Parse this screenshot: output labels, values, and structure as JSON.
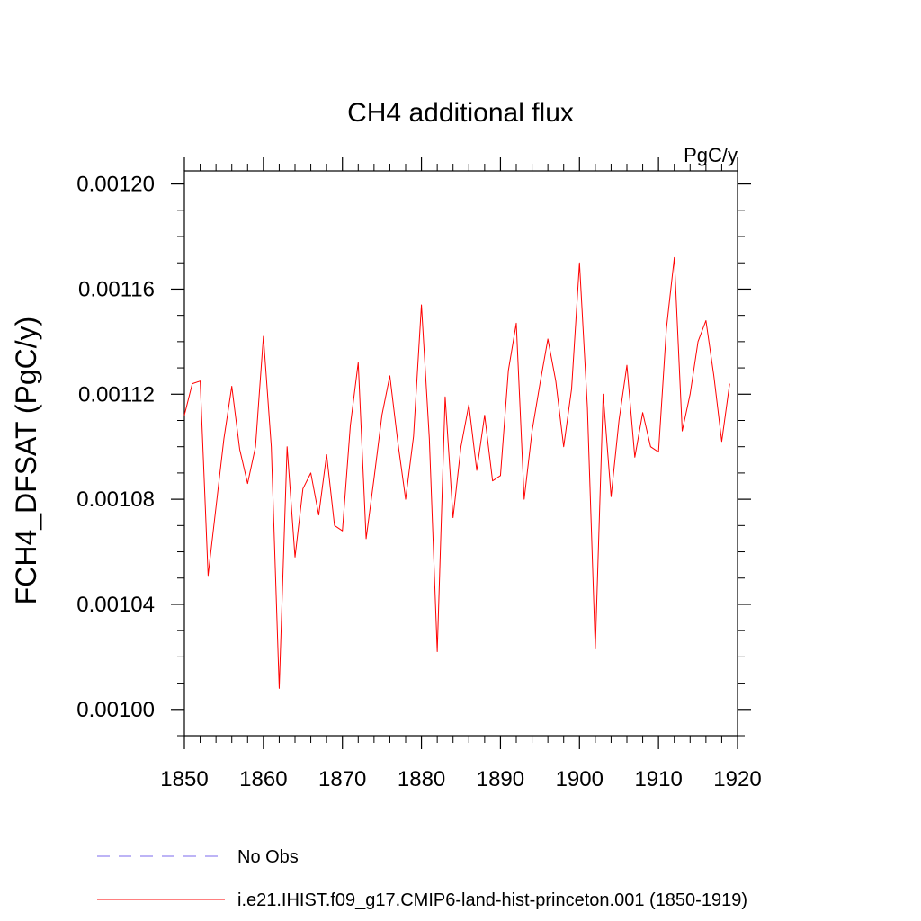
{
  "chart_data": {
    "type": "line",
    "title": "CH4 additional flux",
    "units": "PgC/y",
    "xlabel": "",
    "ylabel": "FCH4_DFSAT  (PgC/y)",
    "xlim": [
      1850,
      1920
    ],
    "ylim": [
      0.00099,
      0.001205
    ],
    "x_ticks": [
      1850,
      1860,
      1870,
      1880,
      1890,
      1900,
      1910,
      1920
    ],
    "x_tick_labels": [
      "1850",
      "1860",
      "1870",
      "1880",
      "1890",
      "1900",
      "1910",
      "1920"
    ],
    "y_ticks": [
      0.001,
      0.00104,
      0.00108,
      0.00112,
      0.00116,
      0.0012
    ],
    "y_tick_labels": [
      "0.00100",
      "0.00104",
      "0.00108",
      "0.00112",
      "0.00116",
      "0.00120"
    ],
    "grid": false,
    "legend_position": "bottom",
    "series": [
      {
        "name": "i.e21.IHIST.f09_g17.CMIP6-land-hist-princeton.001 (1850-1919)",
        "color": "#ff0000",
        "style": "solid",
        "x": [
          1850,
          1851,
          1852,
          1853,
          1854,
          1855,
          1856,
          1857,
          1858,
          1859,
          1860,
          1861,
          1862,
          1863,
          1864,
          1865,
          1866,
          1867,
          1868,
          1869,
          1870,
          1871,
          1872,
          1873,
          1874,
          1875,
          1876,
          1877,
          1878,
          1879,
          1880,
          1881,
          1882,
          1883,
          1884,
          1885,
          1886,
          1887,
          1888,
          1889,
          1890,
          1891,
          1892,
          1893,
          1894,
          1895,
          1896,
          1897,
          1898,
          1899,
          1900,
          1901,
          1902,
          1903,
          1904,
          1905,
          1906,
          1907,
          1908,
          1909,
          1910,
          1911,
          1912,
          1913,
          1914,
          1915,
          1916,
          1917,
          1918,
          1919
        ],
        "values": [
          0.001112,
          0.001124,
          0.001125,
          0.001051,
          0.001077,
          0.001103,
          0.001123,
          0.001099,
          0.001086,
          0.0011,
          0.001142,
          0.0011,
          0.001008,
          0.0011,
          0.001058,
          0.001084,
          0.00109,
          0.001074,
          0.001097,
          0.00107,
          0.001068,
          0.001108,
          0.001132,
          0.001065,
          0.001088,
          0.001112,
          0.001127,
          0.001102,
          0.00108,
          0.001104,
          0.001154,
          0.001103,
          0.001022,
          0.001119,
          0.001073,
          0.0011,
          0.001116,
          0.001091,
          0.001112,
          0.001087,
          0.001089,
          0.001129,
          0.001147,
          0.00108,
          0.001106,
          0.001124,
          0.001141,
          0.001125,
          0.0011,
          0.001122,
          0.00117,
          0.001115,
          0.001023,
          0.00112,
          0.001081,
          0.00111,
          0.001131,
          0.001096,
          0.001113,
          0.0011,
          0.001098,
          0.001145,
          0.001172,
          0.001106,
          0.00112,
          0.00114,
          0.001148,
          0.001127,
          0.001102,
          0.001124
        ]
      }
    ],
    "legend": [
      {
        "label": "No Obs",
        "color": "#7b68ee",
        "style": "dashed"
      },
      {
        "label": "i.e21.IHIST.f09_g17.CMIP6-land-hist-princeton.001 (1850-1919)",
        "color": "#ff0000",
        "style": "solid"
      }
    ]
  }
}
